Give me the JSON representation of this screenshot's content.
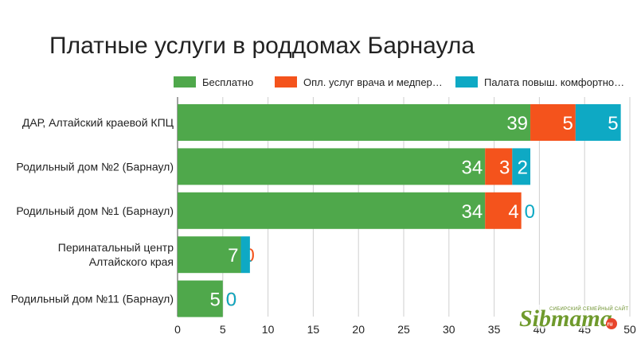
{
  "chart_data": {
    "type": "bar",
    "orientation": "horizontal",
    "stacked": true,
    "title": "Платные услуги в роддомах Барнаула",
    "categories": [
      [
        "ДАР, Алтайский краевой КПЦ"
      ],
      [
        "Родильный дом №2 (Барнаул)"
      ],
      [
        "Родильный дом №1 (Барнаул)"
      ],
      [
        "Перинатальный центр",
        "Алтайского края"
      ],
      [
        "Родильный дом №11 (Барнаул)"
      ]
    ],
    "series": [
      {
        "name": "Бесплатно",
        "color": "#4fa84b",
        "values": [
          39,
          34,
          34,
          7,
          5
        ]
      },
      {
        "name": "Опл. услуг врача и медпер…",
        "color": "#f4531c",
        "values": [
          5,
          3,
          4,
          0,
          0
        ]
      },
      {
        "name": "Палата повыш. комфортно…",
        "color": "#0ea9c4",
        "values": [
          5,
          2,
          0,
          1,
          0
        ]
      }
    ],
    "xlim": [
      0,
      50
    ],
    "xticks": [
      0,
      5,
      10,
      15,
      20,
      25,
      30,
      35,
      40,
      45,
      50
    ],
    "xlabel": "",
    "ylabel": "",
    "grid": true,
    "legend_position": "top-right"
  },
  "watermark": {
    "brand": "Sibmama",
    "tagline": "СИБИРСКИЙ СЕМЕЙНЫЙ САЙТ",
    "domain": "ru",
    "color": "#6f9a2c"
  }
}
